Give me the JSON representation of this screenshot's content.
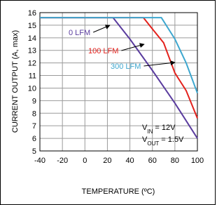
{
  "chart_data": {
    "type": "line",
    "xlabel": "TEMPERATURE (ºC)",
    "ylabel": "CURRENT OUTPUT (A, max)",
    "xlim": [
      -40,
      100
    ],
    "xticks": [
      -40,
      -20,
      0,
      20,
      40,
      60,
      80,
      100
    ],
    "ylim": [
      5,
      16
    ],
    "yticks": [
      5,
      6,
      7,
      8,
      9,
      10,
      11,
      12,
      13,
      14,
      15,
      16
    ],
    "grid": true,
    "series": [
      {
        "name": "0 LFM",
        "color": "#5a3c9e",
        "x": [
          -40,
          25,
          40,
          60,
          80,
          100
        ],
        "values": [
          15.6,
          15.6,
          13.9,
          11.4,
          8.8,
          6.0
        ]
      },
      {
        "name": "100 LFM",
        "color": "#e3211c",
        "x": [
          -40,
          52,
          60,
          70,
          80,
          90,
          100
        ],
        "values": [
          15.6,
          15.6,
          14.7,
          13.6,
          11.2,
          9.8,
          7.6
        ]
      },
      {
        "name": "300 LFM",
        "color": "#3ea7cf",
        "x": [
          -40,
          68,
          80,
          90,
          100
        ],
        "values": [
          15.6,
          15.6,
          13.9,
          12.0,
          9.6
        ]
      }
    ],
    "annotations": [
      [
        "V",
        "IN",
        " = 12V"
      ],
      [
        "V",
        "OUT",
        " = 1.5V"
      ]
    ]
  }
}
